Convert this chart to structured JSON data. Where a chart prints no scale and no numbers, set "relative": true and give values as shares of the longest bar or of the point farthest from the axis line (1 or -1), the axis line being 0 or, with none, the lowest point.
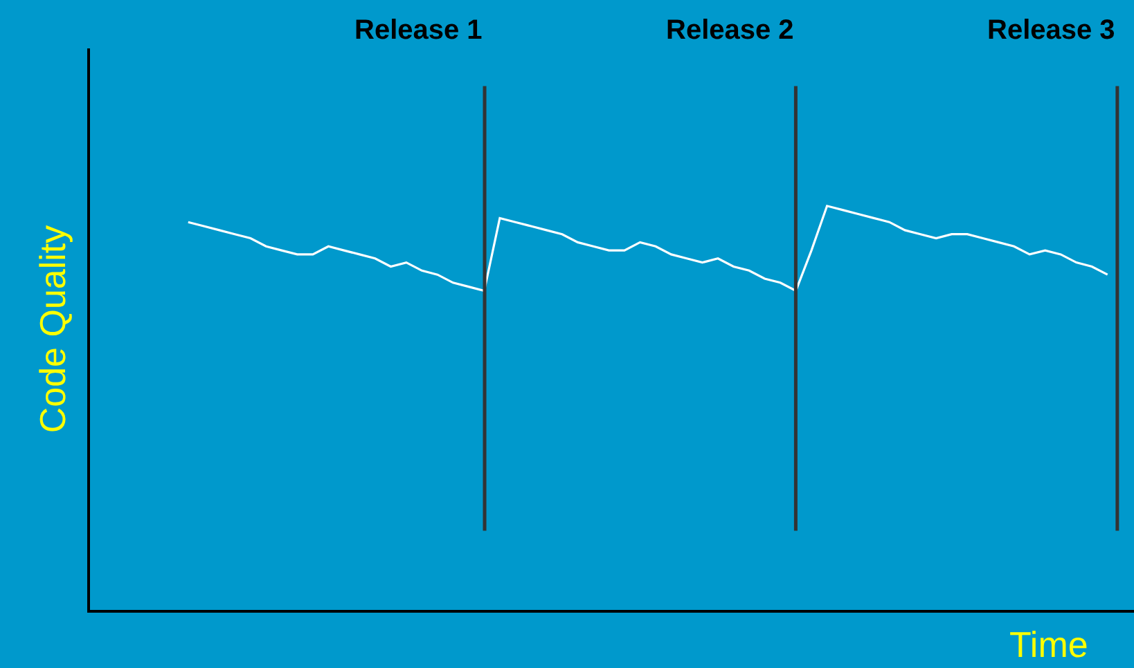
{
  "chart_data": {
    "type": "line",
    "relative": true,
    "xlabel": "Time",
    "ylabel": "Code Quality",
    "grid": false,
    "legend": false,
    "marker": "none",
    "line_style": "solid",
    "categories": [
      null,
      null,
      null,
      null,
      null,
      null,
      null,
      null,
      null,
      null,
      null,
      null,
      null,
      null,
      null,
      null,
      null,
      null,
      null,
      null,
      null,
      null,
      null,
      null,
      null,
      null,
      null,
      null,
      null,
      null,
      null,
      null,
      null,
      null,
      null,
      null,
      null,
      null,
      null,
      null,
      null,
      null,
      null,
      null,
      null,
      null,
      null,
      null,
      null,
      null,
      null,
      null,
      null,
      null,
      null,
      null,
      null,
      null,
      null,
      null
    ],
    "series": [
      {
        "color": "#ffffff",
        "values": [
          0.96,
          0.95,
          0.94,
          0.93,
          0.92,
          0.9,
          0.89,
          0.88,
          0.88,
          0.9,
          0.89,
          0.88,
          0.87,
          0.85,
          0.86,
          0.84,
          0.83,
          0.81,
          0.8,
          0.79,
          0.97,
          0.96,
          0.95,
          0.94,
          0.93,
          0.91,
          0.9,
          0.89,
          0.89,
          0.91,
          0.9,
          0.88,
          0.87,
          0.86,
          0.87,
          0.85,
          0.84,
          0.82,
          0.81,
          0.79,
          0.89,
          1.0,
          0.99,
          0.98,
          0.97,
          0.96,
          0.94,
          0.93,
          0.92,
          0.93,
          0.93,
          0.92,
          0.91,
          0.9,
          0.88,
          0.89,
          0.88,
          0.86,
          0.85,
          0.83
        ]
      }
    ],
    "annotations": [
      "Release 1",
      "Release 2",
      "Release 3"
    ]
  }
}
